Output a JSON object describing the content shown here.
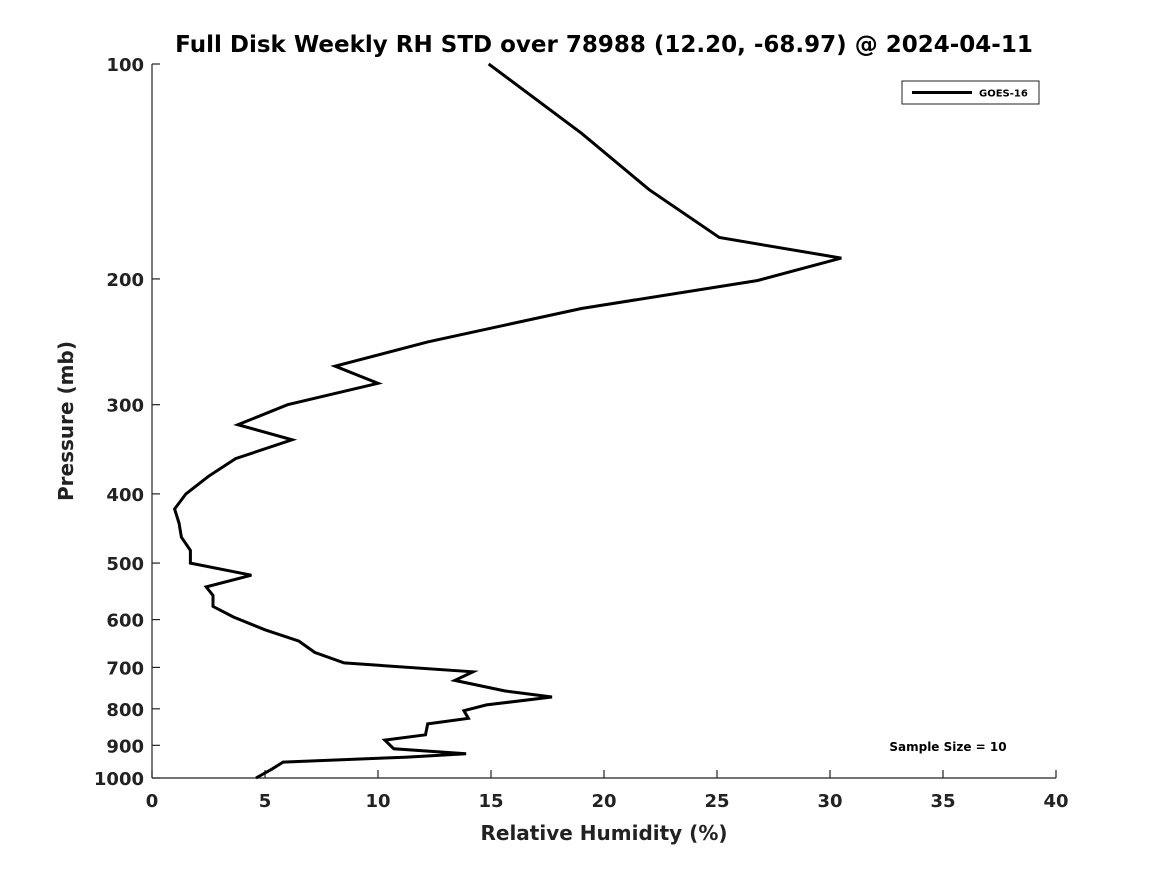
{
  "chart_data": {
    "type": "line",
    "title": "Full Disk Weekly RH STD over 78988 (12.20, -68.97) @ 2024-04-11",
    "xlabel": "Relative Humidity (%)",
    "ylabel": "Pressure (mb)",
    "xlim": [
      0,
      40
    ],
    "ylim": [
      100,
      1000
    ],
    "y_scale": "log",
    "y_inverted": true,
    "x_ticks": [
      0,
      5,
      10,
      15,
      20,
      25,
      30,
      35,
      40
    ],
    "y_ticks": [
      100,
      200,
      300,
      400,
      500,
      600,
      700,
      800,
      900,
      1000
    ],
    "grid": false,
    "legend_position": "top-right",
    "series": [
      {
        "name": "GOES-16",
        "color": "#000000",
        "points": [
          [
            14.9,
            100
          ],
          [
            19.0,
            125
          ],
          [
            22.0,
            150
          ],
          [
            25.1,
            175
          ],
          [
            30.5,
            187
          ],
          [
            26.8,
            201
          ],
          [
            19.0,
            220
          ],
          [
            12.2,
            245
          ],
          [
            8.1,
            265
          ],
          [
            10.0,
            280
          ],
          [
            6.0,
            300
          ],
          [
            3.8,
            320
          ],
          [
            6.2,
            336
          ],
          [
            3.7,
            357
          ],
          [
            2.5,
            378
          ],
          [
            1.5,
            400
          ],
          [
            1.0,
            420
          ],
          [
            1.2,
            440
          ],
          [
            1.3,
            460
          ],
          [
            1.7,
            480
          ],
          [
            1.7,
            500
          ],
          [
            4.4,
            520
          ],
          [
            2.4,
            540
          ],
          [
            2.7,
            555
          ],
          [
            2.7,
            575
          ],
          [
            3.6,
            595
          ],
          [
            5.0,
            620
          ],
          [
            6.5,
            643
          ],
          [
            7.2,
            667
          ],
          [
            8.5,
            690
          ],
          [
            14.2,
            710
          ],
          [
            13.4,
            730
          ],
          [
            15.6,
            755
          ],
          [
            17.7,
            770
          ],
          [
            14.8,
            790
          ],
          [
            13.8,
            805
          ],
          [
            14.0,
            825
          ],
          [
            12.2,
            840
          ],
          [
            12.1,
            870
          ],
          [
            10.3,
            885
          ],
          [
            10.7,
            910
          ],
          [
            13.9,
            925
          ],
          [
            11.2,
            935
          ],
          [
            5.8,
            950
          ],
          [
            5.3,
            972
          ],
          [
            4.6,
            1000
          ]
        ]
      }
    ],
    "annotation": "Sample Size = 10"
  }
}
